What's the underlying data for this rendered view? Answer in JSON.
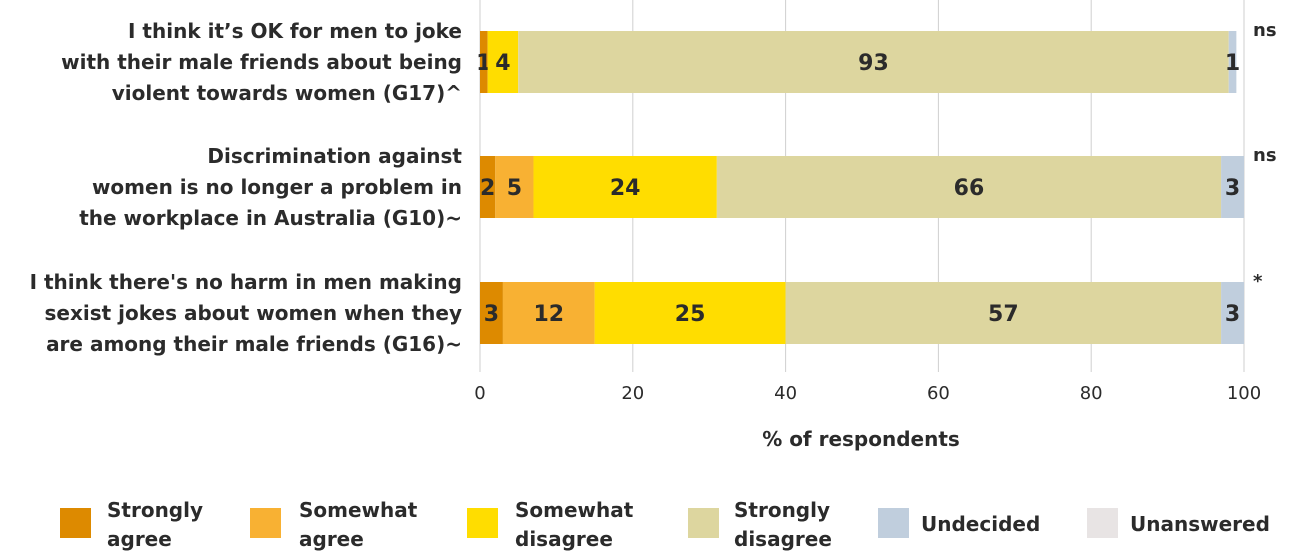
{
  "chart_data": {
    "type": "bar",
    "orientation": "horizontal",
    "stacked": true,
    "title": "",
    "xlabel": "% of respondents",
    "ylabel": "",
    "xlim": [
      0,
      100
    ],
    "xticks": [
      "0",
      "20",
      "40",
      "60",
      "80",
      "100"
    ],
    "grid": true,
    "legend_position": "bottom",
    "categories": [
      [
        "I think it’s OK for men to joke",
        "with their male friends about being",
        "violent towards women (G17)^"
      ],
      [
        "Discrimination against",
        "women is no longer a problem in",
        "the workplace in Australia (G10)~"
      ],
      [
        "I think there's no harm in men making",
        "sexist jokes about women when they",
        "are among their male friends (G16)~"
      ]
    ],
    "significance": [
      "ns",
      "ns",
      "*"
    ],
    "series": [
      {
        "name": [
          "Strongly",
          "agree"
        ],
        "color": "#dd8a00",
        "values": [
          1,
          2,
          3
        ],
        "labels": [
          "1",
          "2",
          "3"
        ]
      },
      {
        "name": [
          "Somewhat",
          "agree"
        ],
        "color": "#f8b133",
        "values": [
          0,
          5,
          12
        ],
        "labels": [
          "",
          "5",
          "12"
        ]
      },
      {
        "name": [
          "Somewhat",
          "disagree"
        ],
        "color": "#ffdd00",
        "values": [
          4,
          24,
          25
        ],
        "labels": [
          "4",
          "24",
          "25"
        ]
      },
      {
        "name": [
          "Strongly",
          "disagree"
        ],
        "color": "#ddd69f",
        "values": [
          93,
          66,
          57
        ],
        "labels": [
          "93",
          "66",
          "57"
        ]
      },
      {
        "name": [
          "Undecided"
        ],
        "color": "#c0cedd",
        "values": [
          1,
          3,
          3
        ],
        "labels": [
          "1",
          "3",
          "3"
        ]
      },
      {
        "name": [
          "Unanswered"
        ],
        "color": "#e8e4e4",
        "values": [
          0,
          0,
          0
        ],
        "labels": [
          "",
          "",
          ""
        ]
      }
    ]
  }
}
